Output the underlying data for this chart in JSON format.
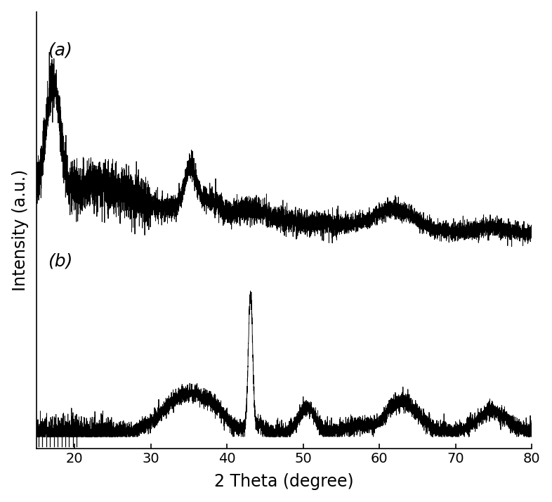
{
  "xlabel": "2 Theta (degree)",
  "ylabel": "Intensity (a.u.)",
  "xlim": [
    15,
    80
  ],
  "x_ticks": [
    20,
    30,
    40,
    50,
    60,
    70,
    80
  ],
  "label_a": "(a)",
  "label_b": "(b)",
  "background_color": "#ffffff",
  "line_color": "#000000",
  "figsize": [
    7.86,
    7.14
  ],
  "dpi": 100,
  "noise_seed_a": 42,
  "noise_seed_b": 77
}
